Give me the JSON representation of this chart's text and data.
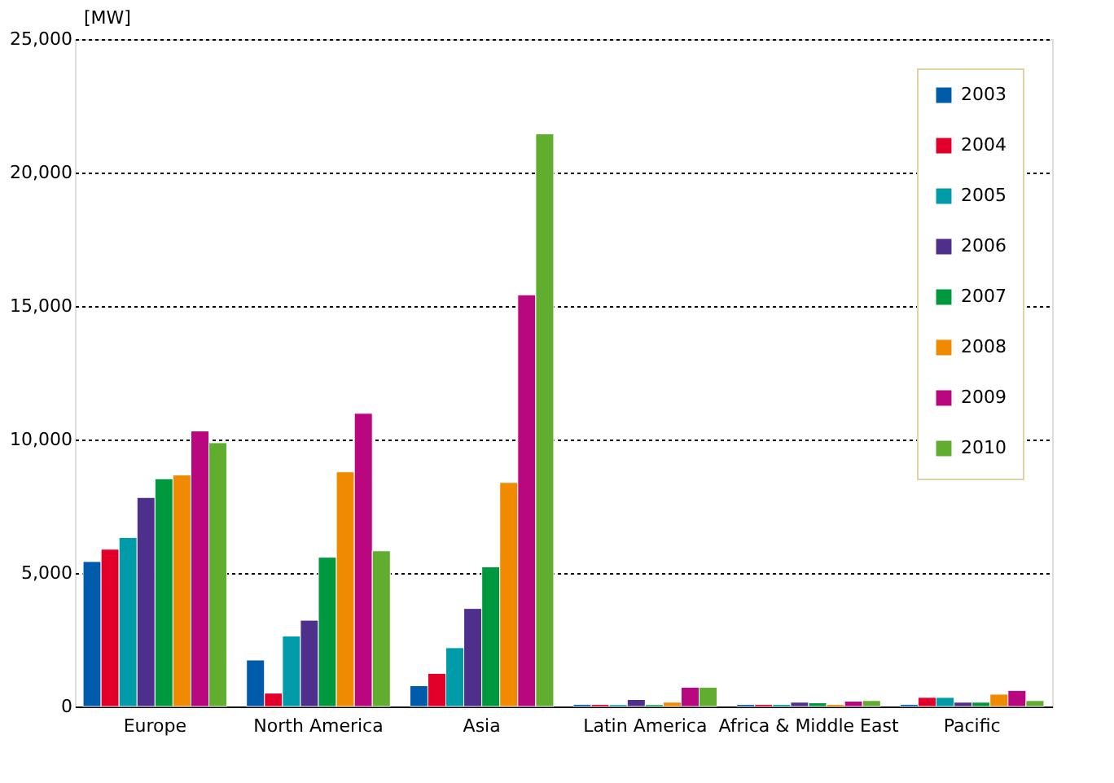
{
  "chart_data": {
    "type": "bar",
    "ylabel": "[MW]",
    "categories": [
      "Europe",
      "North America",
      "Asia",
      "Latin America",
      "Africa & Middle East",
      "Pacific"
    ],
    "series": [
      {
        "name": "2003",
        "color": "#005bab",
        "values": [
          5430,
          1740,
          780,
          80,
          80,
          80
        ]
      },
      {
        "name": "2004",
        "color": "#e2002a",
        "values": [
          5890,
          500,
          1240,
          80,
          80,
          340
        ]
      },
      {
        "name": "2005",
        "color": "#009ba9",
        "values": [
          6330,
          2640,
          2200,
          70,
          80,
          340
        ]
      },
      {
        "name": "2006",
        "color": "#4e2f8c",
        "values": [
          7830,
          3230,
          3670,
          260,
          160,
          160
        ]
      },
      {
        "name": "2007",
        "color": "#00983f",
        "values": [
          8530,
          5590,
          5230,
          70,
          140,
          160
        ]
      },
      {
        "name": "2008",
        "color": "#f08a00",
        "values": [
          8670,
          8790,
          8390,
          160,
          80,
          460
        ]
      },
      {
        "name": "2009",
        "color": "#b8077f",
        "values": [
          10320,
          10980,
          15420,
          720,
          200,
          600
        ]
      },
      {
        "name": "2010",
        "color": "#61ad2f",
        "values": [
          9880,
          5830,
          21450,
          720,
          220,
          220
        ]
      }
    ],
    "ylim": [
      0,
      25000
    ],
    "yticks": [
      {
        "value": 0,
        "label": "0"
      },
      {
        "value": 5000,
        "label": "5,000"
      },
      {
        "value": 10000,
        "label": "10,000"
      },
      {
        "value": 15000,
        "label": "15,000"
      },
      {
        "value": 20000,
        "label": "20,000"
      },
      {
        "value": 25000,
        "label": "25,000"
      }
    ],
    "grid": "y",
    "legend": "top right"
  }
}
